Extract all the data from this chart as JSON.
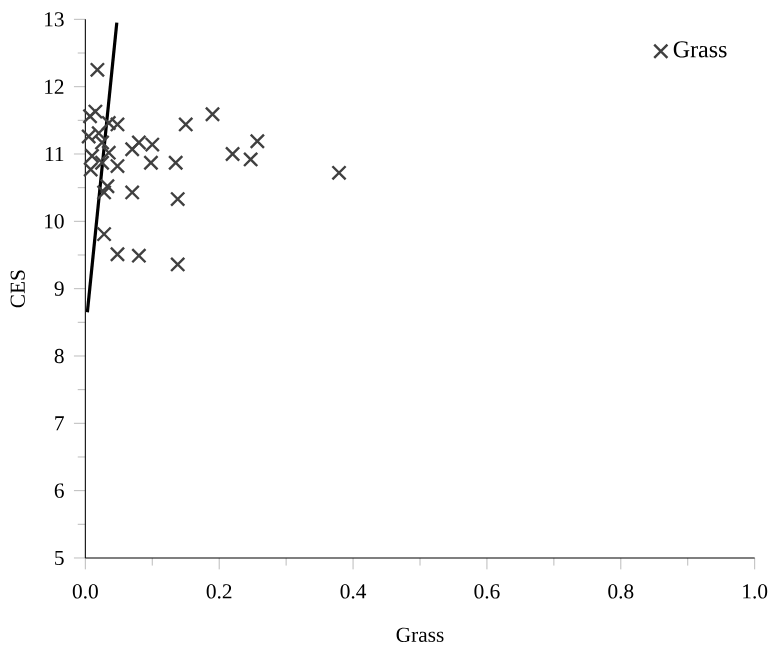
{
  "chart_data": {
    "type": "scatter",
    "xlabel": "Grass",
    "ylabel": "CES",
    "xlim": [
      0,
      1
    ],
    "ylim": [
      5,
      13
    ],
    "xticks": [
      {
        "value": 0,
        "label": "0.0"
      },
      {
        "value": 0.2,
        "label": "0.2"
      },
      {
        "value": 0.4,
        "label": "0.4"
      },
      {
        "value": 0.6,
        "label": "0.6"
      },
      {
        "value": 0.8,
        "label": "0.8"
      },
      {
        "value": 1,
        "label": "1.0"
      }
    ],
    "yticks": [
      5,
      6,
      7,
      8,
      9,
      10,
      11,
      12,
      13
    ],
    "legend": "top right",
    "marker": "cross",
    "grid": false,
    "series": [
      {
        "name": "Grass",
        "color": "#404040",
        "x": [
          0.018,
          0.19,
          0.15,
          0.048,
          0.015,
          0.007,
          0.005,
          0.01,
          0.008,
          0.025,
          0.025,
          0.033,
          0.028,
          0.048,
          0.07,
          0.07,
          0.08,
          0.1,
          0.098,
          0.135,
          0.138,
          0.22,
          0.247,
          0.257,
          0.379,
          0.028,
          0.048,
          0.08,
          0.138,
          0.035,
          0.02,
          0.035
        ],
        "values": [
          12.25,
          11.59,
          11.44,
          11.44,
          11.63,
          11.56,
          11.26,
          10.97,
          10.77,
          11.17,
          10.87,
          10.52,
          10.43,
          10.82,
          10.43,
          11.07,
          11.17,
          11.14,
          10.87,
          10.87,
          10.33,
          11.0,
          10.92,
          11.19,
          10.72,
          9.81,
          9.51,
          9.49,
          9.36,
          11.46,
          11.31,
          11.02
        ]
      },
      {
        "type": "line",
        "marker": "none",
        "color": "#000000",
        "x": [
          0.003,
          0.047
        ],
        "values": [
          8.65,
          12.95
        ]
      }
    ]
  }
}
